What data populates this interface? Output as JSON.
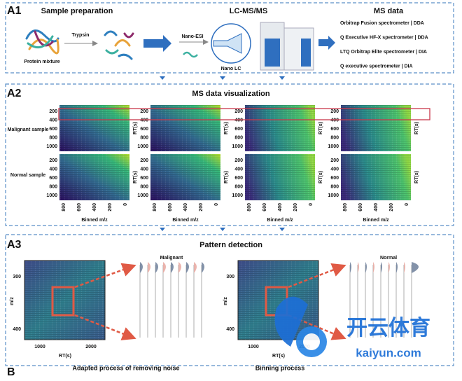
{
  "panels": {
    "a1": {
      "label": "A1",
      "steps": [
        "Sample preparation",
        "LC-MS/MS",
        "MS data"
      ],
      "protein_mixture": "Protein mixture",
      "trypsin": "Trypsin",
      "nano_esi": "Nano-ESI",
      "nano_lc": "Nano LC",
      "instruments": [
        "Orbitrap Fusion  spectrometer | DDA",
        "Q Executive HF-X spectrometer | DDA",
        "LTQ Orbitrap Elite spectrometer | DIA",
        "Q executive spectrometer | DIA"
      ]
    },
    "a2": {
      "label": "A2",
      "title": "MS data visualization",
      "rows": [
        "Malignant sample",
        "Normal sample"
      ],
      "y_ticks": [
        "200",
        "400",
        "600",
        "800",
        "1000"
      ],
      "x_ticks": [
        "800",
        "600",
        "400",
        "200",
        "0"
      ],
      "x_label": "Binned m/z",
      "y_label": "RT(s)"
    },
    "a3": {
      "label": "A3",
      "title": "Pattern detection",
      "groups": [
        "Malignant",
        "Normal"
      ],
      "y_ticks": [
        "300",
        "400"
      ],
      "x_ticks": [
        "1000",
        "2000"
      ],
      "y_label": "m/z",
      "x_label": "RT(s)",
      "captions": [
        "Adapted process of removing noise",
        "Binning process"
      ]
    },
    "b": {
      "label": "B"
    }
  },
  "watermark": {
    "brand": "开云体育",
    "site": "kaiyun.com"
  }
}
